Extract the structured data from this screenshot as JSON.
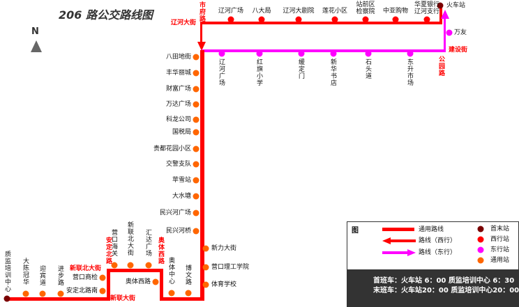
{
  "title": "206 路公交路线图",
  "compass": {
    "label": "N",
    "icon": "north-arrow-icon"
  },
  "colors": {
    "common_line": "#ff0000",
    "west_line": "#ff0000",
    "east_line": "#ff00ff",
    "terminal": "#7a0000",
    "west_stop": "#ff0000",
    "east_stop": "#ff00ff",
    "common_stop": "#ff6600"
  },
  "streets": [
    "市府路",
    "辽河大街",
    "建设街",
    "公园路",
    "新联北大街",
    "安定北路",
    "新联大街",
    "奥体西路"
  ],
  "terminals": [
    "火车站",
    "质监培训中心"
  ],
  "west_stops": [
    "辽河广场",
    "八大局",
    "辽河大剧院",
    "莲花小区",
    "站前区检察院",
    "中亚购物",
    "华夏银行辽河支行"
  ],
  "east_stops": [
    "万友",
    "辽河广场",
    "红旗小学",
    "缓定门",
    "新华书店",
    "石头道",
    "东升市场"
  ],
  "common_stops_left": [
    "八田地街",
    "丰华丽城",
    "财富广场",
    "万达广场",
    "科龙公司",
    "国税局",
    "贵都花园小区",
    "交警支队",
    "苹雪站",
    "大水塘",
    "民兴河广场",
    "民兴河桥"
  ],
  "common_stops_right": [
    "新力大街",
    "营口理工学院",
    "体育学校"
  ],
  "common_stops_bottom": [
    "博文路",
    "奥体中心",
    "奥体西路",
    "汇达广场",
    "新联北大街",
    "营口海关",
    "营口商检",
    "安定北路南",
    "进步路",
    "迎宾道",
    "大陈冠华"
  ],
  "legend": {
    "title": "图",
    "lines": [
      {
        "label": "通用路线",
        "type": "common"
      },
      {
        "label": "路线（西行）",
        "type": "west-arrow"
      },
      {
        "label": "路线（东行）",
        "type": "east-arrow"
      }
    ],
    "stops": [
      {
        "label": "首末站",
        "color": "#7a0000"
      },
      {
        "label": "西行站",
        "color": "#ff0000"
      },
      {
        "label": "东行站",
        "color": "#ff00ff"
      },
      {
        "label": "通用站",
        "color": "#ff6600"
      }
    ],
    "first_bus": "首班车：火车站 6：00   质监培训中心 6：30",
    "last_bus": "末班车：火车站20：00   质监培训中心20：00"
  }
}
